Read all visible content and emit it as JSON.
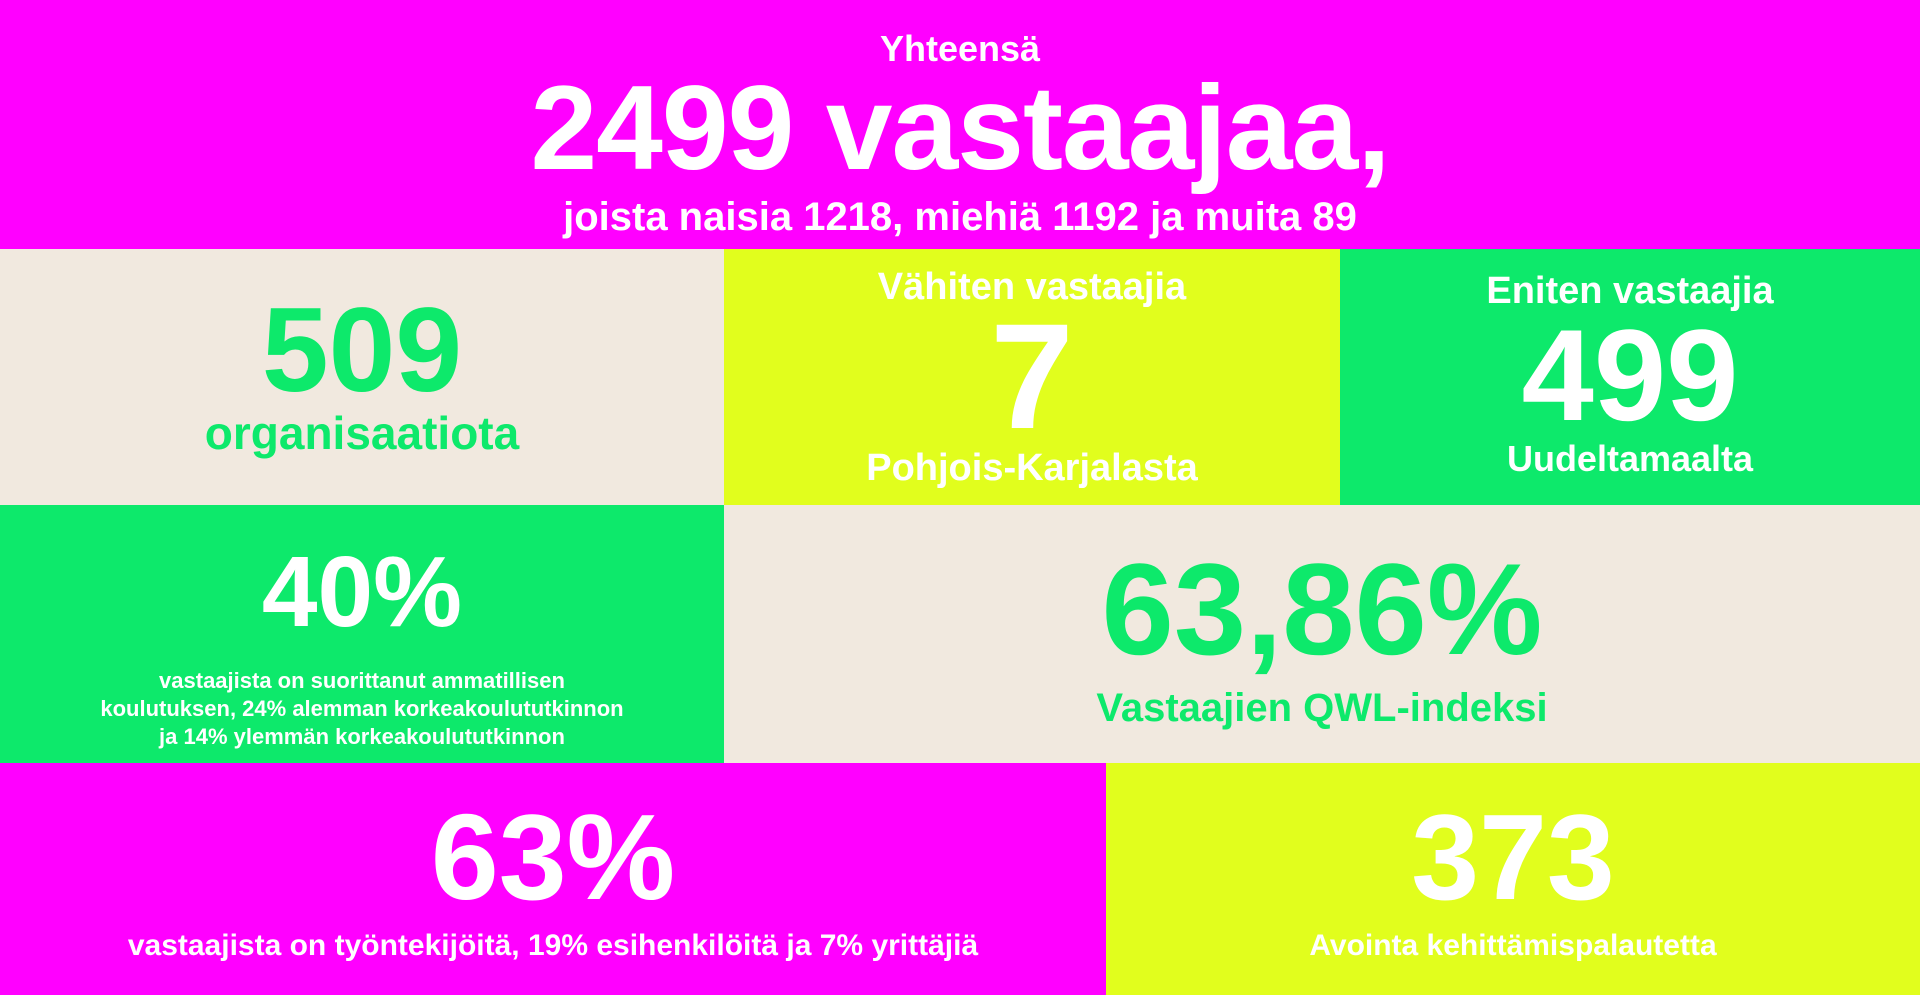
{
  "header": {
    "label": "Yhteensä",
    "total": "2499 vastaajaa,",
    "breakdown": "joista naisia 1218, miehiä 1192 ja muita 89"
  },
  "organisations": {
    "value": "509",
    "label": "organisaatiota"
  },
  "least_respondents": {
    "label": "Vähiten vastaajia",
    "value": "7",
    "region": "Pohjois-Karjalasta"
  },
  "most_respondents": {
    "label": "Eniten vastaajia",
    "value": "499",
    "region": "Uudeltamaalta"
  },
  "education": {
    "value": "40%",
    "lines": [
      "vastaajista on suorittanut ammatillisen",
      "koulutuksen, 24% alemman korkeakoulututkinnon",
      "ja 14% ylemmän korkeakoulututkinnon"
    ]
  },
  "qwl": {
    "value": "63,86%",
    "label": "Vastaajien QWL-indeksi"
  },
  "roles": {
    "value": "63%",
    "label": "vastaajista on työntekijöitä, 19% esihenkilöitä ja 7% yrittäjiä"
  },
  "feedback": {
    "value": "373",
    "label": "Avointa kehittämispalautetta"
  },
  "colors": {
    "magenta": "#ff00ff",
    "beige": "#f1e9df",
    "lime": "#e1fe1d",
    "green": "#0de96b",
    "white": "#ffffff"
  }
}
